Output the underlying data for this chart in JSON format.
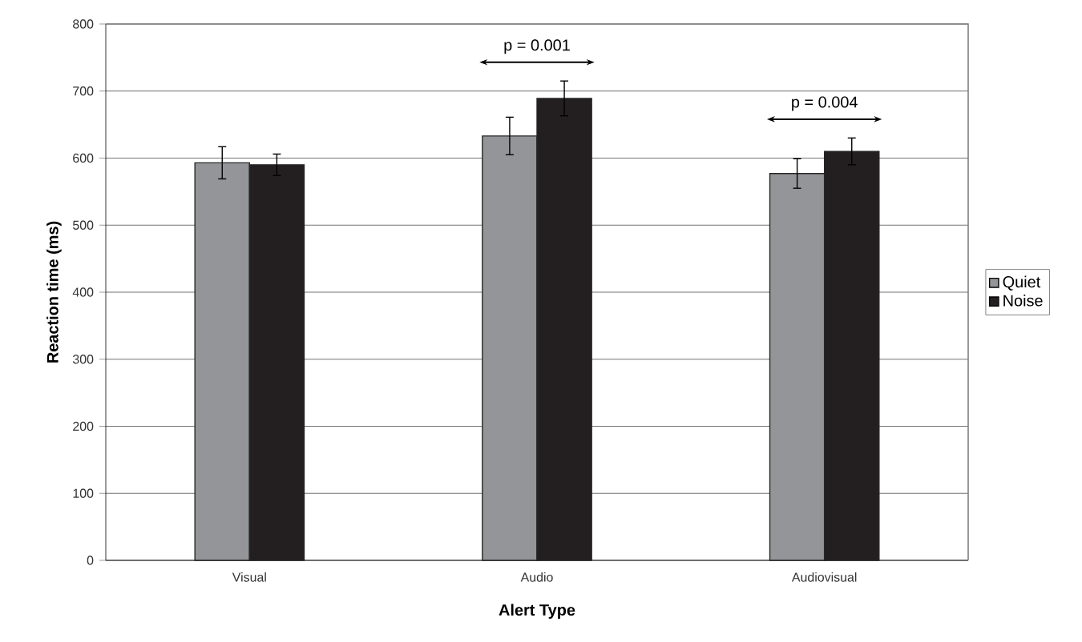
{
  "chart_data": {
    "type": "bar",
    "xlabel": "Alert Type",
    "ylabel": "Reaction time (ms)",
    "categories": [
      "Visual",
      "Audio",
      "Audiovisual"
    ],
    "series": [
      {
        "name": "Quiet",
        "color": "#939598",
        "values": [
          593,
          633,
          577
        ],
        "errors": [
          24,
          28,
          22
        ]
      },
      {
        "name": "Noise",
        "color": "#231f20",
        "values": [
          590,
          689,
          610
        ],
        "errors": [
          16,
          26,
          20
        ]
      }
    ],
    "ylim": [
      0,
      800
    ],
    "yticks": [
      0,
      100,
      200,
      300,
      400,
      500,
      600,
      700,
      800
    ],
    "grid": "y",
    "legend": "right",
    "annotations": [
      "p = 0.001",
      "p = 0.004"
    ]
  }
}
